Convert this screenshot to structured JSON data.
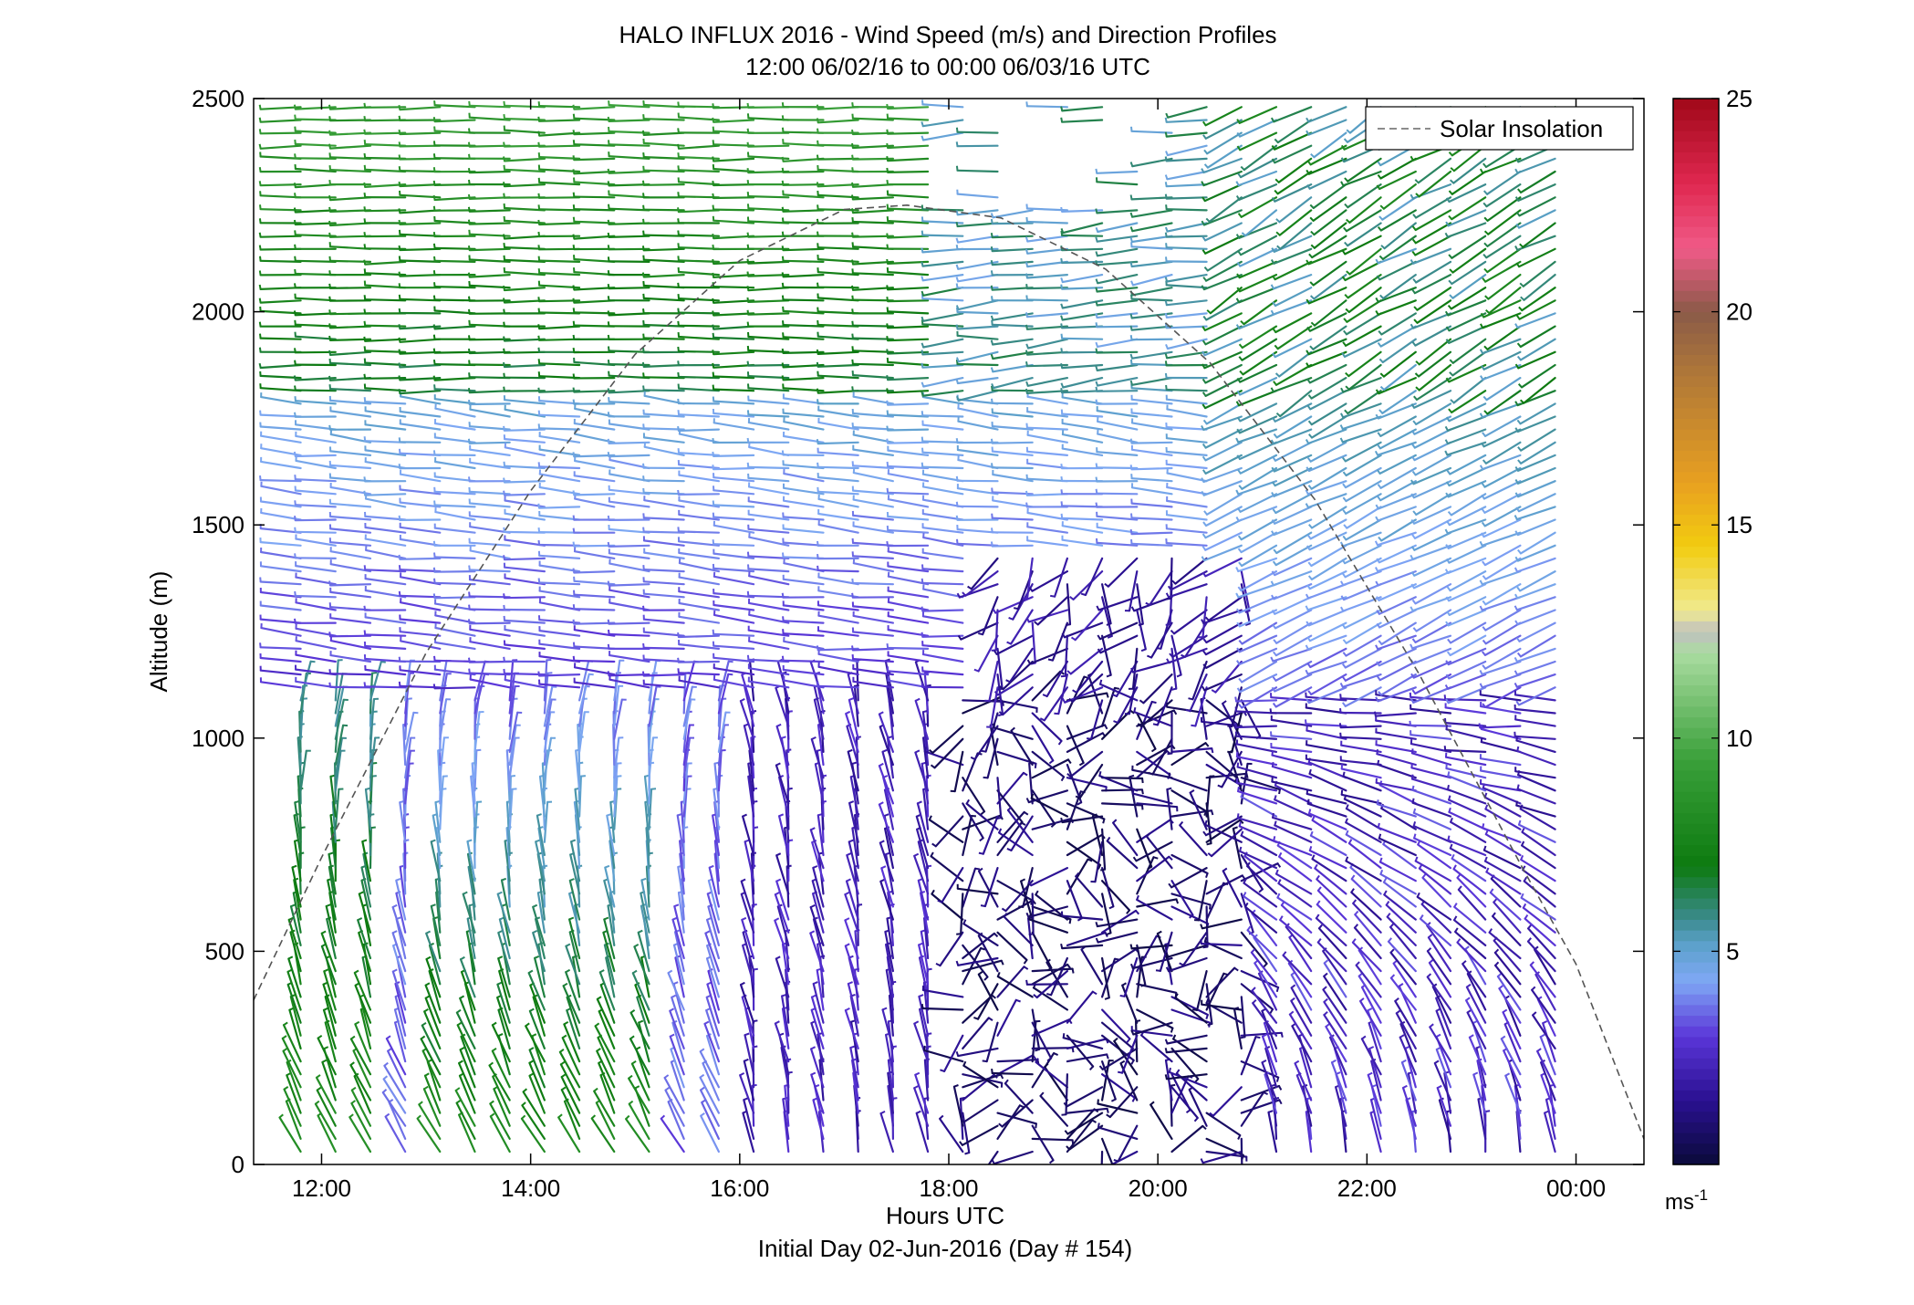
{
  "chart_data": {
    "type": "wind-barb-profile",
    "title": "HALO INFLUX 2016 - Wind Speed (m/s) and Direction Profiles",
    "subtitle": "12:00 06/02/16 to 00:00 06/03/16  UTC",
    "xlabel": "Hours UTC",
    "xlabel2": "Initial Day 02-Jun-2016 (Day # 154)",
    "ylabel": "Altitude (m)",
    "x_ticks": [
      {
        "hour": 12,
        "label": "12:00"
      },
      {
        "hour": 14,
        "label": "14:00"
      },
      {
        "hour": 16,
        "label": "16:00"
      },
      {
        "hour": 18,
        "label": "18:00"
      },
      {
        "hour": 20,
        "label": "20:00"
      },
      {
        "hour": 22,
        "label": "22:00"
      },
      {
        "hour": 24,
        "label": "00:00"
      }
    ],
    "xlim_hours": [
      11.35,
      24.65
    ],
    "y_ticks": [
      0,
      500,
      1000,
      1500,
      2000,
      2500
    ],
    "ylim": [
      0,
      2500
    ],
    "legend": {
      "label": "Solar Insolation",
      "style": "dashed",
      "color": "#666666",
      "placement": "top-right"
    },
    "colorbar": {
      "unit_label": "ms",
      "unit_exponent": "-1",
      "ticks": [
        5,
        10,
        15,
        20,
        25
      ],
      "range": [
        0,
        25
      ],
      "stops": [
        {
          "v": 0,
          "c": "#0a0a3a"
        },
        {
          "v": 1.5,
          "c": "#2a1090"
        },
        {
          "v": 3.0,
          "c": "#5a35d8"
        },
        {
          "v": 4.3,
          "c": "#7fa8f5"
        },
        {
          "v": 5.2,
          "c": "#5aa0c8"
        },
        {
          "v": 5.8,
          "c": "#3a8a8a"
        },
        {
          "v": 7.0,
          "c": "#0d7a10"
        },
        {
          "v": 9.5,
          "c": "#3aa03a"
        },
        {
          "v": 12.0,
          "c": "#aadca0"
        },
        {
          "v": 12.5,
          "c": "#c0c0c0"
        },
        {
          "v": 13.0,
          "c": "#f0ea90"
        },
        {
          "v": 14.5,
          "c": "#f2cc10"
        },
        {
          "v": 16.0,
          "c": "#e8a020"
        },
        {
          "v": 18.5,
          "c": "#b07838"
        },
        {
          "v": 20.0,
          "c": "#8a5a48"
        },
        {
          "v": 21.5,
          "c": "#f05a88"
        },
        {
          "v": 23.0,
          "c": "#e02850"
        },
        {
          "v": 25.0,
          "c": "#a00818"
        }
      ]
    },
    "solar_insolation_curve": {
      "peak_hour": 17.6,
      "peak_altitude": 2250,
      "points_hour_alt": [
        [
          11.3,
          360
        ],
        [
          12.0,
          720
        ],
        [
          13.0,
          1200
        ],
        [
          14.0,
          1580
        ],
        [
          15.0,
          1900
        ],
        [
          16.0,
          2120
        ],
        [
          17.0,
          2240
        ],
        [
          17.6,
          2250
        ],
        [
          18.5,
          2220
        ],
        [
          19.5,
          2100
        ],
        [
          20.5,
          1880
        ],
        [
          21.5,
          1560
        ],
        [
          22.5,
          1150
        ],
        [
          23.5,
          690
        ],
        [
          24.0,
          470
        ],
        [
          24.65,
          60
        ]
      ]
    },
    "profile_hours_range": [
      11.8,
      23.8
    ],
    "profile_count": 37,
    "altitude_levels_range": [
      30,
      2480
    ],
    "altitude_level_count": 82,
    "wind_regime_summary": [
      {
        "hours": [
          11.8,
          16.0
        ],
        "alt": [
          0,
          1100
        ],
        "speed_ms": [
          3,
          8
        ],
        "direction": "southerly/south-southeast veering with height, green near surface in 13:00-15:00"
      },
      {
        "hours": [
          16.0,
          18.0
        ],
        "alt": [
          0,
          1100
        ],
        "speed_ms": [
          1,
          3
        ],
        "direction": "weak southerly"
      },
      {
        "hours": [
          18.0,
          21.0
        ],
        "alt": [
          0,
          1100
        ],
        "speed_ms": [
          0,
          2
        ],
        "direction": "variable, light and disorganized"
      },
      {
        "hours": [
          21.0,
          24.0
        ],
        "alt": [
          0,
          1000
        ],
        "speed_ms": [
          1,
          4
        ],
        "direction": "southerly near surface, westerly aloft"
      },
      {
        "hours": [
          11.8,
          24.0
        ],
        "alt": [
          1100,
          1800
        ],
        "speed_ms": [
          2,
          5
        ],
        "direction": "westerly"
      },
      {
        "hours": [
          11.8,
          18.0
        ],
        "alt": [
          1800,
          2500
        ],
        "speed_ms": [
          5,
          9
        ],
        "direction": "westerly"
      },
      {
        "hours": [
          20.5,
          24.0
        ],
        "alt": [
          1600,
          2500
        ],
        "speed_ms": [
          4,
          8
        ],
        "direction": "northwesterly"
      }
    ]
  }
}
